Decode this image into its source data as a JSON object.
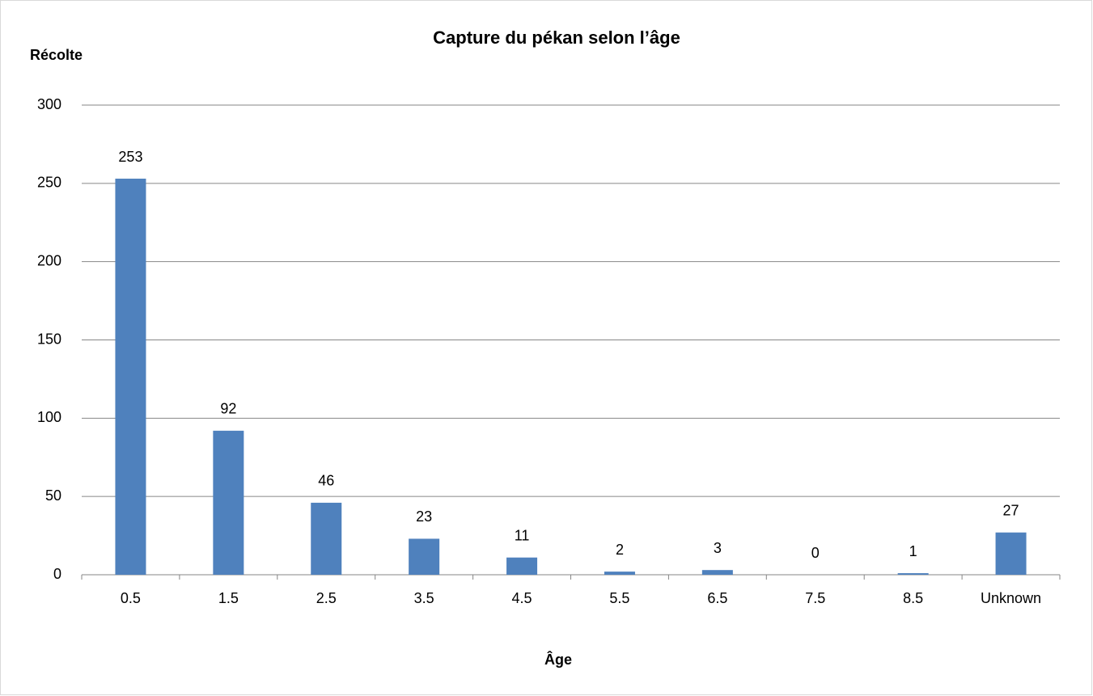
{
  "chart_data": {
    "type": "bar",
    "title": "Capture du pékan selon l’âge",
    "y_label": "Récolte",
    "x_label": "Âge",
    "categories": [
      "0.5",
      "1.5",
      "2.5",
      "3.5",
      "4.5",
      "5.5",
      "6.5",
      "7.5",
      "8.5",
      "Unknown"
    ],
    "values": [
      253,
      92,
      46,
      23,
      11,
      2,
      3,
      0,
      1,
      27
    ],
    "color": "#4f81bd",
    "ylim": [
      0,
      300
    ],
    "yticks": [
      0,
      50,
      100,
      150,
      200,
      250,
      300
    ],
    "grid": true
  }
}
